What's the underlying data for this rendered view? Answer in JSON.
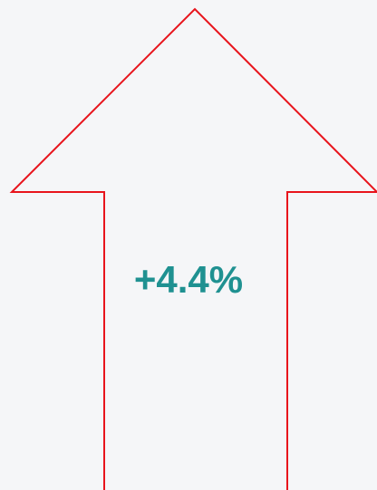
{
  "label": "+4.4%"
}
